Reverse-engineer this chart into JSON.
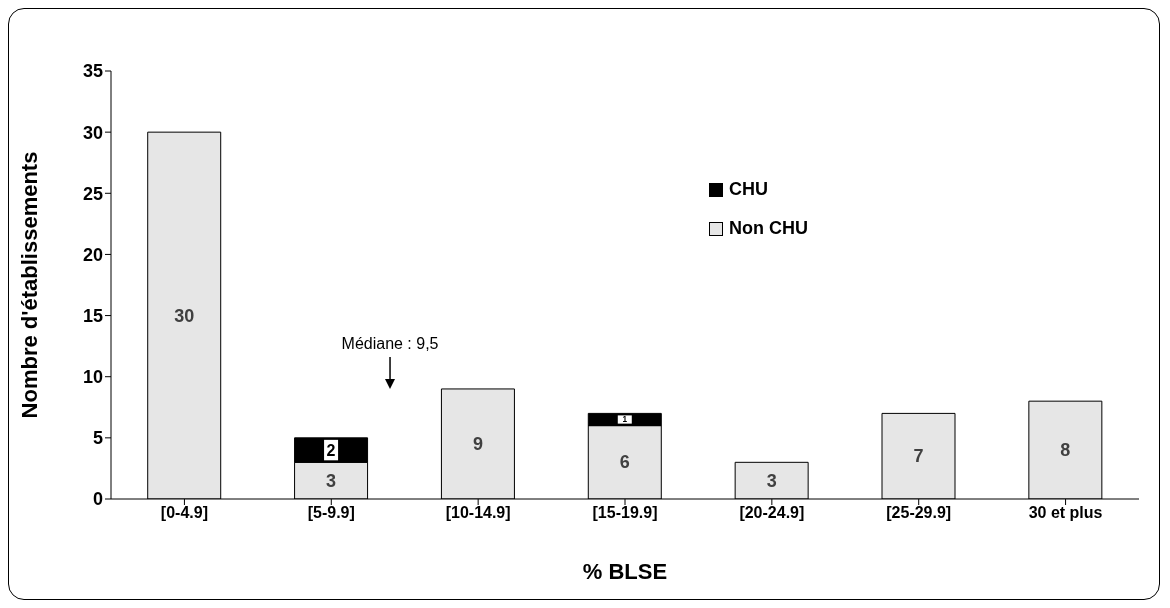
{
  "chart_data": {
    "type": "bar",
    "xlabel": "% BLSE",
    "ylabel": "Nombre d'établissements",
    "categories": [
      "[0-4.9]",
      "[5-9.9]",
      "[10-14.9]",
      "[15-19.9]",
      "[20-24.9]",
      "[25-29.9]",
      "30 et plus"
    ],
    "series": [
      {
        "name": "Non CHU",
        "color": "#e6e6e6",
        "values": [
          30,
          3,
          9,
          6,
          3,
          7,
          8
        ]
      },
      {
        "name": "CHU",
        "color": "#000000",
        "values": [
          null,
          2,
          null,
          1,
          null,
          null,
          null
        ]
      }
    ],
    "stacked": true,
    "data_labels": true,
    "ylim": [
      0,
      35
    ],
    "yticks": [
      0,
      5,
      10,
      15,
      20,
      25,
      30,
      35
    ],
    "legend": "top right",
    "annotations": [
      "Médiane : 9,5"
    ]
  }
}
